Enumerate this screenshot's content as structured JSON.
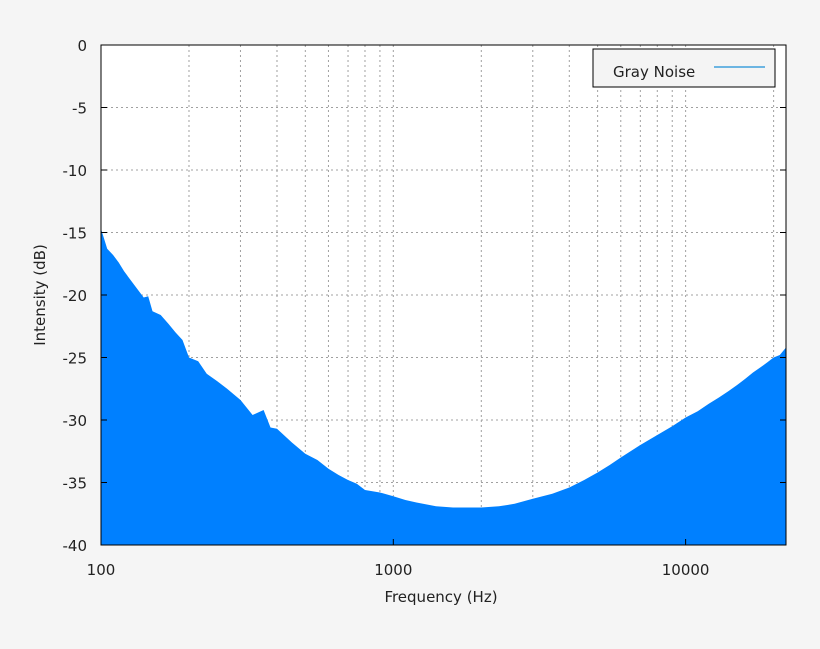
{
  "chart_data": {
    "type": "area",
    "title": "",
    "xlabel": "Frequency (Hz)",
    "ylabel": "Intensity (dB)",
    "xscale": "log",
    "xlim": [
      100,
      22050
    ],
    "ylim": [
      -40,
      0
    ],
    "xticks": [
      100,
      1000,
      10000
    ],
    "xtick_labels": [
      "100",
      "1000",
      "10000"
    ],
    "yticks": [
      0,
      -5,
      -10,
      -15,
      -20,
      -25,
      -30,
      -35,
      -40
    ],
    "ytick_labels": [
      "0",
      "-5",
      "-10",
      "-15",
      "-20",
      "-25",
      "-30",
      "-35",
      "-40"
    ],
    "grid": true,
    "legend_position": "top-right",
    "series": [
      {
        "name": "Gray Noise",
        "color": "#0080ff",
        "legend_line_color": "#1a8fd6",
        "x": [
          100,
          105,
          110,
          115,
          120,
          130,
          140,
          145,
          150,
          160,
          170,
          180,
          190,
          200,
          215,
          230,
          250,
          270,
          300,
          330,
          360,
          380,
          400,
          450,
          500,
          550,
          600,
          650,
          700,
          750,
          800,
          900,
          1000,
          1100,
          1200,
          1400,
          1600,
          1800,
          2000,
          2300,
          2600,
          3000,
          3500,
          4000,
          4500,
          5000,
          5500,
          6000,
          7000,
          8000,
          9000,
          10000,
          11000,
          12000,
          13000,
          14000,
          15000,
          16000,
          17000,
          18000,
          19000,
          20000,
          21000,
          22050
        ],
        "y": [
          -14.7,
          -16.3,
          -16.8,
          -17.4,
          -18.1,
          -19.2,
          -20.2,
          -20.1,
          -21.3,
          -21.6,
          -22.3,
          -23.0,
          -23.6,
          -25.0,
          -25.3,
          -26.3,
          -26.9,
          -27.5,
          -28.4,
          -29.6,
          -29.2,
          -30.6,
          -30.7,
          -31.8,
          -32.7,
          -33.2,
          -33.9,
          -34.4,
          -34.8,
          -35.1,
          -35.6,
          -35.8,
          -36.1,
          -36.4,
          -36.6,
          -36.9,
          -37.0,
          -37.0,
          -37.0,
          -36.9,
          -36.7,
          -36.3,
          -35.9,
          -35.4,
          -34.8,
          -34.2,
          -33.6,
          -33.0,
          -32.0,
          -31.2,
          -30.5,
          -29.8,
          -29.3,
          -28.7,
          -28.2,
          -27.7,
          -27.2,
          -26.7,
          -26.2,
          -25.8,
          -25.4,
          -25.0,
          -24.8,
          -24.2
        ]
      }
    ]
  }
}
